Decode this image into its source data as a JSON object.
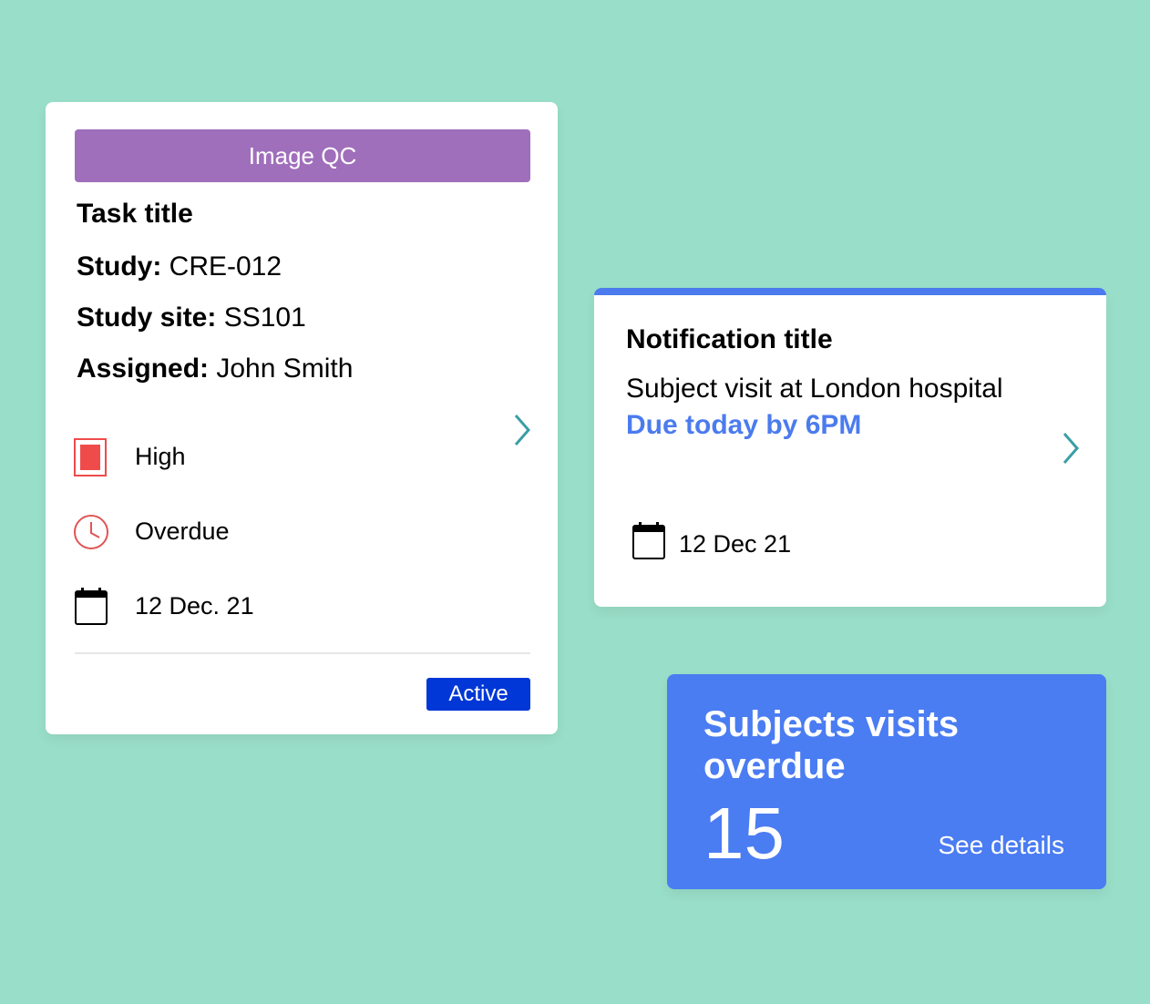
{
  "task_card": {
    "tag": "Image QC",
    "title": "Task title",
    "study_label": "Study:",
    "study_value": "CRE-012",
    "site_label": "Study site:",
    "site_value": "SS101",
    "assigned_label": "Assigned:",
    "assigned_value": "John Smith",
    "priority": "High",
    "status": "Overdue",
    "date": "12 Dec. 21",
    "state": "Active"
  },
  "notification_card": {
    "title": "Notification title",
    "body": "Subject visit at London hospital",
    "due": "Due today by 6PM",
    "date": "12 Dec 21"
  },
  "summary_card": {
    "title": "Subjects visits overdue",
    "count": "15",
    "link": "See details"
  },
  "colors": {
    "background": "#99dec8",
    "tag": "#a06fbb",
    "priority_high": "#ef4b4b",
    "accent_blue": "#4b7bee",
    "active_badge": "#0037d6",
    "chevron": "#3a9ea5"
  },
  "icons": {
    "chevron": "chevron-right-icon",
    "priority": "priority-high-icon",
    "status": "clock-icon",
    "date": "calendar-icon"
  }
}
